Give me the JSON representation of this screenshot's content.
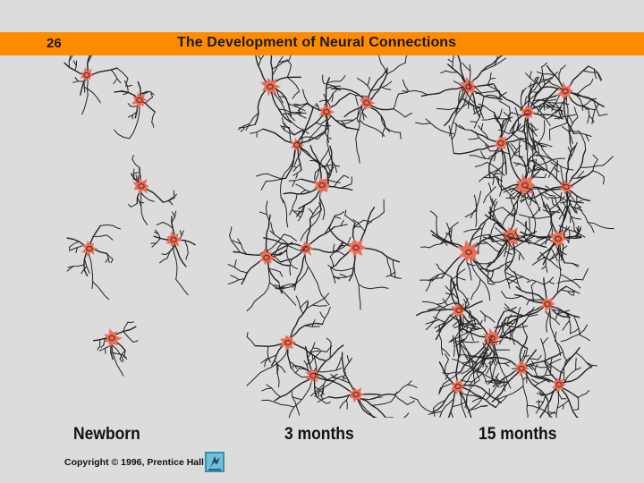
{
  "header": {
    "slide_number": "26",
    "title": "The Development of Neural Connections",
    "bar_color": "#ff8c00"
  },
  "panels": [
    {
      "id": "newborn",
      "label": "Newborn"
    },
    {
      "id": "3m",
      "label": "3 months"
    },
    {
      "id": "15m",
      "label": "15 months"
    }
  ],
  "footer": {
    "copyright": "Copyright © 1996, Prentice Hall",
    "logo_icon": "prentice-hall-logo-icon"
  },
  "colors": {
    "neuron_body": "#e8705a",
    "nucleus": "#7a2a1e",
    "dendrite": "#222222",
    "background": "#dcdcdc"
  }
}
